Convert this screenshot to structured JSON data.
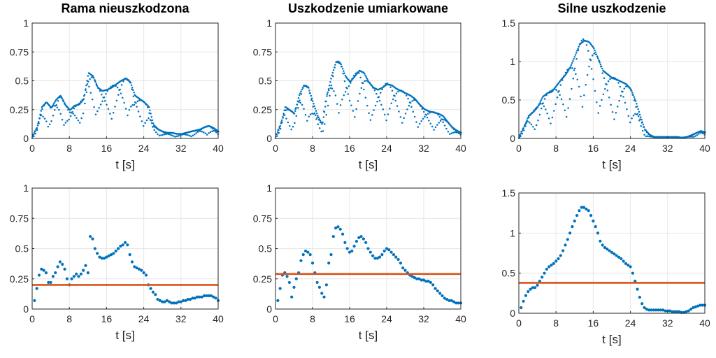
{
  "chart_data": [
    {
      "type": "scatter",
      "title": "Rama nieuszkodzona",
      "xlabel": "t [s]",
      "ylabel": "",
      "xlim": [
        0,
        40
      ],
      "ylim": [
        0,
        1
      ],
      "xticks": [
        0,
        8,
        16,
        24,
        32,
        40
      ],
      "yticks": [
        0,
        0.25,
        0.5,
        0.75,
        1
      ],
      "ytick_labels": [
        "0",
        "0.25",
        "0.5",
        "0.75",
        "1"
      ],
      "grid": true,
      "style": "dense_band",
      "colors": {
        "points": "#0072BD"
      },
      "series": [
        {
          "x": [
            0,
            1,
            2,
            3,
            4,
            5,
            6,
            7,
            8,
            9,
            10,
            11,
            12,
            13,
            14,
            15,
            16,
            17,
            18,
            19,
            20,
            21,
            22,
            23,
            24,
            25,
            26,
            27,
            28,
            29,
            30,
            31,
            32,
            33,
            34,
            35,
            36,
            37,
            38,
            39,
            40
          ],
          "y_upper": [
            0.02,
            0.1,
            0.28,
            0.32,
            0.27,
            0.34,
            0.38,
            0.3,
            0.25,
            0.29,
            0.3,
            0.35,
            0.58,
            0.55,
            0.45,
            0.42,
            0.43,
            0.45,
            0.48,
            0.51,
            0.53,
            0.5,
            0.38,
            0.35,
            0.32,
            0.28,
            0.12,
            0.08,
            0.06,
            0.05,
            0.05,
            0.04,
            0.04,
            0.05,
            0.06,
            0.07,
            0.08,
            0.1,
            0.11,
            0.09,
            0.06
          ],
          "y_lower": [
            0,
            0.02,
            0.05,
            0.08,
            0.05,
            0.08,
            0.1,
            0.08,
            0.05,
            0.08,
            0.1,
            0.12,
            0.2,
            0.18,
            0.15,
            0.12,
            0.12,
            0.12,
            0.13,
            0.14,
            0.15,
            0.14,
            0.1,
            0.08,
            0.07,
            0.05,
            0.03,
            0.02,
            0.01,
            0.01,
            0.01,
            0.01,
            0.01,
            0.01,
            0.01,
            0.01,
            0.02,
            0.02,
            0.02,
            0.02,
            0.01
          ]
        }
      ]
    },
    {
      "type": "scatter",
      "title": "Uszkodzenie umiarkowane",
      "xlabel": "t [s]",
      "ylabel": "",
      "xlim": [
        0,
        40
      ],
      "ylim": [
        0,
        1
      ],
      "xticks": [
        0,
        8,
        16,
        24,
        32,
        40
      ],
      "yticks": [
        0,
        0.25,
        0.5,
        0.75,
        1
      ],
      "ytick_labels": [
        "0",
        "0.25",
        "0.5",
        "0.75",
        "1"
      ],
      "grid": true,
      "style": "dense_band",
      "colors": {
        "points": "#0072BD"
      },
      "series": [
        {
          "x": [
            0,
            1,
            2,
            3,
            4,
            5,
            6,
            7,
            8,
            9,
            10,
            11,
            12,
            13,
            14,
            15,
            16,
            17,
            18,
            19,
            20,
            21,
            22,
            23,
            24,
            25,
            26,
            27,
            28,
            29,
            30,
            31,
            32,
            33,
            34,
            35,
            36,
            37,
            38,
            39,
            40
          ],
          "y_upper": [
            0.02,
            0.12,
            0.28,
            0.25,
            0.22,
            0.38,
            0.47,
            0.45,
            0.32,
            0.2,
            0.12,
            0.38,
            0.55,
            0.68,
            0.66,
            0.55,
            0.5,
            0.55,
            0.6,
            0.58,
            0.5,
            0.45,
            0.43,
            0.45,
            0.48,
            0.47,
            0.44,
            0.42,
            0.4,
            0.38,
            0.35,
            0.3,
            0.26,
            0.24,
            0.23,
            0.22,
            0.2,
            0.15,
            0.1,
            0.07,
            0.05
          ],
          "y_lower": [
            0,
            0.02,
            0.05,
            0.05,
            0.05,
            0.08,
            0.1,
            0.1,
            0.07,
            0.05,
            0.03,
            0.08,
            0.12,
            0.15,
            0.14,
            0.12,
            0.11,
            0.12,
            0.13,
            0.12,
            0.11,
            0.1,
            0.09,
            0.1,
            0.1,
            0.1,
            0.09,
            0.09,
            0.08,
            0.08,
            0.07,
            0.06,
            0.05,
            0.05,
            0.05,
            0.04,
            0.04,
            0.03,
            0.02,
            0.02,
            0.01
          ]
        }
      ]
    },
    {
      "type": "scatter",
      "title": "Silne uszkodzenie",
      "xlabel": "t [s]",
      "ylabel": "",
      "xlim": [
        0,
        40
      ],
      "ylim": [
        0,
        1.5
      ],
      "xticks": [
        0,
        8,
        16,
        24,
        32,
        40
      ],
      "yticks": [
        0,
        0.5,
        1,
        1.5
      ],
      "ytick_labels": [
        "0",
        "0.5",
        "1",
        "1.5"
      ],
      "grid": true,
      "style": "dense_band",
      "colors": {
        "points": "#0072BD"
      },
      "series": [
        {
          "x": [
            0,
            1,
            2,
            3,
            4,
            5,
            6,
            7,
            8,
            9,
            10,
            11,
            12,
            13,
            14,
            15,
            16,
            17,
            18,
            19,
            20,
            21,
            22,
            23,
            24,
            25,
            26,
            27,
            28,
            29,
            30,
            31,
            32,
            33,
            34,
            35,
            36,
            37,
            38,
            39,
            40
          ],
          "y_upper": [
            0.02,
            0.15,
            0.3,
            0.35,
            0.42,
            0.55,
            0.6,
            0.62,
            0.7,
            0.78,
            0.85,
            0.95,
            1.1,
            1.25,
            1.3,
            1.28,
            1.2,
            1.05,
            0.9,
            0.85,
            0.8,
            0.78,
            0.75,
            0.72,
            0.65,
            0.5,
            0.3,
            0.12,
            0.05,
            0.02,
            0.02,
            0.02,
            0.02,
            0.02,
            0.02,
            0.01,
            0.02,
            0.04,
            0.07,
            0.1,
            0.08
          ],
          "y_lower": [
            0,
            0.03,
            0.06,
            0.07,
            0.08,
            0.1,
            0.12,
            0.12,
            0.14,
            0.16,
            0.17,
            0.19,
            0.22,
            0.25,
            0.26,
            0.25,
            0.24,
            0.21,
            0.18,
            0.17,
            0.16,
            0.15,
            0.15,
            0.14,
            0.13,
            0.1,
            0.06,
            0.02,
            0.01,
            0.005,
            0.005,
            0.005,
            0.005,
            0.005,
            0.005,
            0.005,
            0.005,
            0.01,
            0.015,
            0.02,
            0.015
          ]
        }
      ]
    },
    {
      "type": "scatter",
      "title": "",
      "xlabel": "t [s]",
      "ylabel": "",
      "xlim": [
        0,
        40
      ],
      "ylim": [
        0,
        1
      ],
      "xticks": [
        0,
        8,
        16,
        24,
        32,
        40
      ],
      "yticks": [
        0,
        0.25,
        0.5,
        0.75,
        1
      ],
      "ytick_labels": [
        "0",
        "0.25",
        "0.5",
        "0.75",
        "1"
      ],
      "grid": true,
      "style": "points",
      "threshold": 0.2,
      "colors": {
        "points": "#0072BD",
        "threshold": "#D95319"
      },
      "series": [
        {
          "x": [
            0.5,
            1,
            1.5,
            2,
            2.5,
            3,
            3.5,
            4,
            4.5,
            5,
            5.5,
            6,
            6.5,
            7,
            7.5,
            8,
            8.5,
            9,
            9.5,
            10,
            10.5,
            11,
            11.5,
            12,
            12.5,
            13,
            13.5,
            14,
            14.5,
            15,
            15.5,
            16,
            16.5,
            17,
            17.5,
            18,
            18.5,
            19,
            19.5,
            20,
            20.5,
            21,
            21.5,
            22,
            22.5,
            23,
            23.5,
            24,
            24.5,
            25,
            25.5,
            26,
            26.5,
            27,
            27.5,
            28,
            28.5,
            29,
            29.5,
            30,
            30.5,
            31,
            31.5,
            32,
            32.5,
            33,
            33.5,
            34,
            34.5,
            35,
            35.5,
            36,
            36.5,
            37,
            37.5,
            38,
            38.5,
            39,
            39.5,
            40
          ],
          "y": [
            0.07,
            0.17,
            0.28,
            0.33,
            0.32,
            0.3,
            0.22,
            0.22,
            0.27,
            0.3,
            0.35,
            0.39,
            0.37,
            0.33,
            0.25,
            0.2,
            0.25,
            0.27,
            0.29,
            0.27,
            0.29,
            0.32,
            0.36,
            0.3,
            0.6,
            0.58,
            0.5,
            0.46,
            0.43,
            0.42,
            0.42,
            0.43,
            0.44,
            0.45,
            0.46,
            0.48,
            0.5,
            0.52,
            0.53,
            0.55,
            0.53,
            0.45,
            0.39,
            0.35,
            0.34,
            0.33,
            0.32,
            0.3,
            0.28,
            0.2,
            0.17,
            0.14,
            0.12,
            0.08,
            0.07,
            0.06,
            0.06,
            0.07,
            0.06,
            0.05,
            0.05,
            0.05,
            0.06,
            0.06,
            0.07,
            0.07,
            0.08,
            0.08,
            0.09,
            0.09,
            0.1,
            0.1,
            0.1,
            0.11,
            0.11,
            0.11,
            0.11,
            0.1,
            0.09,
            0.07
          ]
        }
      ]
    },
    {
      "type": "scatter",
      "title": "",
      "xlabel": "t [s]",
      "ylabel": "",
      "xlim": [
        0,
        40
      ],
      "ylim": [
        0,
        1
      ],
      "xticks": [
        0,
        8,
        16,
        24,
        32,
        40
      ],
      "yticks": [
        0,
        0.25,
        0.5,
        0.75,
        1
      ],
      "ytick_labels": [
        "0",
        "0.25",
        "0.5",
        "0.75",
        "1"
      ],
      "grid": true,
      "style": "points",
      "threshold": 0.29,
      "colors": {
        "points": "#0072BD",
        "threshold": "#D95319"
      },
      "series": [
        {
          "x": [
            0.5,
            1,
            1.5,
            2,
            2.5,
            3,
            3.5,
            4,
            4.5,
            5,
            5.5,
            6,
            6.5,
            7,
            7.5,
            8,
            8.5,
            9,
            9.5,
            10,
            10.5,
            11,
            11.5,
            12,
            12.5,
            13,
            13.5,
            14,
            14.5,
            15,
            15.5,
            16,
            16.5,
            17,
            17.5,
            18,
            18.5,
            19,
            19.5,
            20,
            20.5,
            21,
            21.5,
            22,
            22.5,
            23,
            23.5,
            24,
            24.5,
            25,
            25.5,
            26,
            26.5,
            27,
            27.5,
            28,
            28.5,
            29,
            29.5,
            30,
            30.5,
            31,
            31.5,
            32,
            32.5,
            33,
            33.5,
            34,
            34.5,
            35,
            35.5,
            36,
            36.5,
            37,
            37.5,
            38,
            38.5,
            39,
            39.5,
            40
          ],
          "y": [
            0.07,
            0.17,
            0.28,
            0.3,
            0.27,
            0.22,
            0.1,
            0.18,
            0.25,
            0.3,
            0.4,
            0.45,
            0.48,
            0.47,
            0.45,
            0.38,
            0.3,
            0.22,
            0.18,
            0.13,
            0.1,
            0.2,
            0.38,
            0.45,
            0.6,
            0.67,
            0.68,
            0.66,
            0.62,
            0.55,
            0.5,
            0.47,
            0.48,
            0.52,
            0.56,
            0.59,
            0.6,
            0.58,
            0.55,
            0.5,
            0.47,
            0.44,
            0.42,
            0.42,
            0.43,
            0.45,
            0.48,
            0.5,
            0.49,
            0.47,
            0.45,
            0.43,
            0.41,
            0.38,
            0.34,
            0.32,
            0.3,
            0.28,
            0.27,
            0.26,
            0.25,
            0.25,
            0.24,
            0.24,
            0.23,
            0.23,
            0.22,
            0.2,
            0.17,
            0.15,
            0.13,
            0.11,
            0.09,
            0.08,
            0.07,
            0.07,
            0.06,
            0.05,
            0.05,
            0.05
          ]
        }
      ]
    },
    {
      "type": "scatter",
      "title": "",
      "xlabel": "t [s]",
      "ylabel": "",
      "xlim": [
        0,
        40
      ],
      "ylim": [
        0,
        1.5
      ],
      "xticks": [
        0,
        8,
        16,
        24,
        32,
        40
      ],
      "yticks": [
        0,
        0.5,
        1,
        1.5
      ],
      "ytick_labels": [
        "0",
        "0.5",
        "1",
        "1.5"
      ],
      "grid": true,
      "style": "points",
      "threshold": 0.38,
      "colors": {
        "points": "#0072BD",
        "threshold": "#D95319"
      },
      "series": [
        {
          "x": [
            0.5,
            1,
            1.5,
            2,
            2.5,
            3,
            3.5,
            4,
            4.5,
            5,
            5.5,
            6,
            6.5,
            7,
            7.5,
            8,
            8.5,
            9,
            9.5,
            10,
            10.5,
            11,
            11.5,
            12,
            12.5,
            13,
            13.5,
            14,
            14.5,
            15,
            15.5,
            16,
            16.5,
            17,
            17.5,
            18,
            18.5,
            19,
            19.5,
            20,
            20.5,
            21,
            21.5,
            22,
            22.5,
            23,
            23.5,
            24,
            24.5,
            25,
            25.5,
            26,
            26.5,
            27,
            27.5,
            28,
            28.5,
            29,
            29.5,
            30,
            30.5,
            31,
            31.5,
            32,
            32.5,
            33,
            33.5,
            34,
            34.5,
            35,
            35.5,
            36,
            36.5,
            37,
            37.5,
            38,
            38.5,
            39,
            39.5,
            40
          ],
          "y": [
            0.07,
            0.15,
            0.22,
            0.27,
            0.3,
            0.32,
            0.32,
            0.35,
            0.4,
            0.45,
            0.5,
            0.55,
            0.58,
            0.6,
            0.62,
            0.65,
            0.68,
            0.72,
            0.78,
            0.85,
            0.92,
            1.0,
            1.08,
            1.15,
            1.22,
            1.28,
            1.32,
            1.32,
            1.3,
            1.28,
            1.22,
            1.15,
            1.08,
            1.0,
            0.9,
            0.85,
            0.82,
            0.8,
            0.78,
            0.76,
            0.74,
            0.72,
            0.7,
            0.68,
            0.65,
            0.62,
            0.6,
            0.58,
            0.5,
            0.4,
            0.3,
            0.2,
            0.12,
            0.07,
            0.05,
            0.04,
            0.04,
            0.04,
            0.04,
            0.04,
            0.04,
            0.04,
            0.03,
            0.03,
            0.03,
            0.02,
            0.02,
            0.02,
            0.02,
            0.01,
            0.01,
            0.02,
            0.03,
            0.05,
            0.07,
            0.08,
            0.09,
            0.1,
            0.1,
            0.1
          ]
        }
      ]
    }
  ]
}
